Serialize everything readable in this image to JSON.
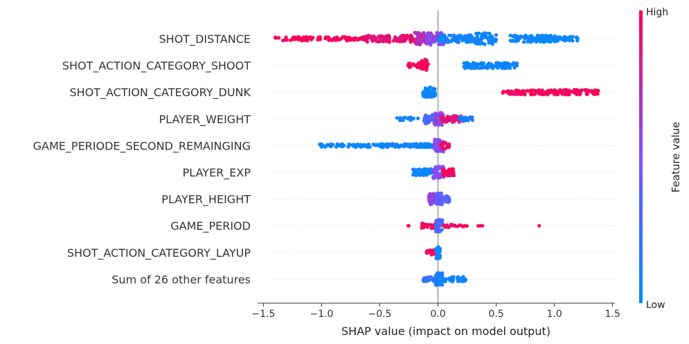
{
  "chart_data": {
    "type": "scatter",
    "subtype": "shap-beeswarm",
    "xlabel": "SHAP value (impact on model output)",
    "xlim": [
      -1.55,
      1.52
    ],
    "xticks": [
      -1.5,
      -1.0,
      -0.5,
      0.0,
      0.5,
      1.0,
      1.5
    ],
    "xtick_labels": [
      "−1.5",
      "−1.0",
      "−0.5",
      "0.0",
      "0.5",
      "1.0",
      "1.5"
    ],
    "grid": false,
    "colorbar": {
      "label": "Feature value",
      "high_label": "High",
      "low_label": "Low",
      "low_color": "#008bfb",
      "high_color": "#ff0052"
    },
    "features": [
      {
        "name": "SHOT_DISTANCE",
        "clusters": [
          {
            "from": -1.4,
            "to": -0.62,
            "value": 0.97,
            "n": 110,
            "spread": 0.32
          },
          {
            "from": -0.62,
            "to": -0.2,
            "value": 0.9,
            "n": 90,
            "spread": 0.55
          },
          {
            "from": -0.2,
            "to": -0.05,
            "value": 0.72,
            "n": 70,
            "spread": 1.0
          },
          {
            "from": -0.1,
            "to": 0.05,
            "value": 0.55,
            "n": 60,
            "spread": 1.0
          },
          {
            "from": 0.0,
            "to": 0.3,
            "value": 0.08,
            "n": 90,
            "spread": 0.6
          },
          {
            "from": 0.3,
            "to": 0.5,
            "value": 0.05,
            "n": 60,
            "spread": 0.9
          },
          {
            "from": 0.62,
            "to": 1.02,
            "value": 0.04,
            "n": 90,
            "spread": 0.55
          },
          {
            "from": 1.02,
            "to": 1.21,
            "value": 0.04,
            "n": 30,
            "spread": 0.35
          }
        ]
      },
      {
        "name": "SHOT_ACTION_CATEGORY_SHOOT",
        "clusters": [
          {
            "from": -0.26,
            "to": -0.08,
            "value": 0.97,
            "n": 50,
            "spread": 0.4
          },
          {
            "from": -0.14,
            "to": -0.09,
            "value": 0.95,
            "n": 30,
            "spread": 1.0
          },
          {
            "from": 0.22,
            "to": 0.68,
            "value": 0.04,
            "n": 130,
            "spread": 0.45
          }
        ]
      },
      {
        "name": "SHOT_ACTION_CATEGORY_DUNK",
        "clusters": [
          {
            "from": -0.14,
            "to": -0.02,
            "value": 0.04,
            "n": 60,
            "spread": 0.8
          },
          {
            "from": 0.55,
            "to": 0.75,
            "value": 0.97,
            "n": 20,
            "spread": 0.25
          },
          {
            "from": 0.6,
            "to": 1.38,
            "value": 0.97,
            "n": 150,
            "spread": 0.4
          }
        ]
      },
      {
        "name": "PLAYER_WEIGHT",
        "clusters": [
          {
            "from": -0.36,
            "to": -0.15,
            "value": 0.08,
            "n": 25,
            "spread": 0.25
          },
          {
            "from": -0.12,
            "to": -0.02,
            "value": 0.3,
            "n": 45,
            "spread": 0.8
          },
          {
            "from": -0.03,
            "to": 0.05,
            "value": 0.6,
            "n": 40,
            "spread": 1.0
          },
          {
            "from": 0.02,
            "to": 0.22,
            "value": 0.88,
            "n": 60,
            "spread": 0.5
          },
          {
            "from": 0.18,
            "to": 0.3,
            "value": 0.12,
            "n": 25,
            "spread": 0.3
          }
        ]
      },
      {
        "name": "GAME_PERIODE_SECOND_REMAINGING",
        "clusters": [
          {
            "from": -1.03,
            "to": -0.5,
            "value": 0.04,
            "n": 70,
            "spread": 0.25
          },
          {
            "from": -0.5,
            "to": -0.05,
            "value": 0.06,
            "n": 110,
            "spread": 0.3
          },
          {
            "from": -0.03,
            "to": 0.05,
            "value": 0.55,
            "n": 45,
            "spread": 1.0
          },
          {
            "from": 0.02,
            "to": 0.1,
            "value": 0.92,
            "n": 25,
            "spread": 0.55
          }
        ]
      },
      {
        "name": "PLAYER_EXP",
        "clusters": [
          {
            "from": -0.22,
            "to": -0.05,
            "value": 0.06,
            "n": 55,
            "spread": 0.55
          },
          {
            "from": -0.04,
            "to": 0.05,
            "value": 0.5,
            "n": 55,
            "spread": 1.0
          },
          {
            "from": 0.04,
            "to": 0.14,
            "value": 0.95,
            "n": 45,
            "spread": 0.55
          }
        ]
      },
      {
        "name": "PLAYER_HEIGHT",
        "clusters": [
          {
            "from": -0.08,
            "to": -0.01,
            "value": 0.6,
            "n": 45,
            "spread": 0.9
          },
          {
            "from": -0.02,
            "to": 0.04,
            "value": 0.4,
            "n": 45,
            "spread": 1.0
          },
          {
            "from": 0.03,
            "to": 0.1,
            "value": 0.35,
            "n": 30,
            "spread": 0.55
          }
        ]
      },
      {
        "name": "GAME_PERIOD",
        "clusters": [
          {
            "from": -0.27,
            "to": -0.25,
            "value": 0.97,
            "n": 2,
            "spread": 0.0
          },
          {
            "from": -0.14,
            "to": -0.01,
            "value": 0.95,
            "n": 40,
            "spread": 0.4
          },
          {
            "from": -0.02,
            "to": 0.04,
            "value": 0.3,
            "n": 45,
            "spread": 1.0
          },
          {
            "from": 0.05,
            "to": 0.17,
            "value": 0.96,
            "n": 15,
            "spread": 0.25
          },
          {
            "from": 0.18,
            "to": 0.25,
            "value": 0.96,
            "n": 6,
            "spread": 0.15
          },
          {
            "from": 0.32,
            "to": 0.4,
            "value": 0.96,
            "n": 3,
            "spread": 0.0
          },
          {
            "from": 0.87,
            "to": 0.87,
            "value": 0.97,
            "n": 1,
            "spread": 0.0
          }
        ]
      },
      {
        "name": "SHOT_ACTION_CATEGORY_LAYUP",
        "clusters": [
          {
            "from": -0.1,
            "to": -0.02,
            "value": 0.97,
            "n": 30,
            "spread": 0.4
          },
          {
            "from": -0.02,
            "to": 0.02,
            "value": 0.04,
            "n": 40,
            "spread": 1.0
          }
        ]
      },
      {
        "name": "Sum of 26 other features",
        "clusters": [
          {
            "from": -0.13,
            "to": -0.01,
            "value": 0.2,
            "n": 30,
            "spread": 0.35
          },
          {
            "from": -0.02,
            "to": 0.04,
            "value": 0.1,
            "n": 60,
            "spread": 1.0
          },
          {
            "from": 0.04,
            "to": 0.24,
            "value": 0.05,
            "n": 45,
            "spread": 0.4
          }
        ]
      }
    ]
  }
}
